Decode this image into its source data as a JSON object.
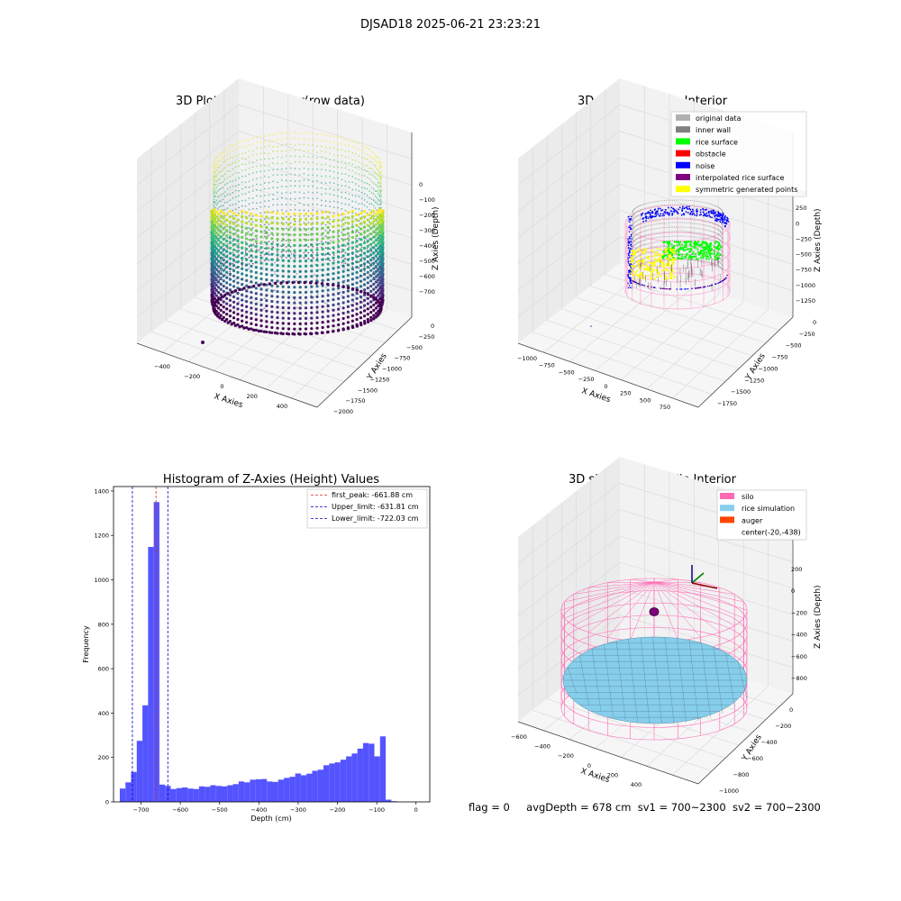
{
  "figure": {
    "suptitle": "DJSAD18 2025-06-21 23:23:21"
  },
  "status": {
    "flag": "flag = 0",
    "avg_depth": "avgDepth = 678 cm",
    "sv1": "sv1 = 700~2300",
    "sv2": "sv2 = 700~2300"
  },
  "colors": {
    "histogram_bar": "#4b4bff",
    "first_peak_line": "#d62728",
    "limit_lines": "#0000cc",
    "silo": "#ff69b4",
    "rice_simulation": "#87ceeb",
    "auger": "#ff4500",
    "original_data": "#b0b0b0",
    "inner_wall": "#808080",
    "rice_surface": "#00ff00",
    "obstacle": "#ff0000",
    "noise": "#0000ff",
    "interpolated_rice_surface": "#800080",
    "symmetric_generated_points": "#ffff00"
  },
  "chart_data": [
    {
      "type": "scatter",
      "projection": "3d",
      "title": "3D Plot of Silo Interior(row data)",
      "xlabel": "X Axies",
      "ylabel": "Y Axies",
      "zlabel": "Z Axies (Depth)",
      "xticks": [
        "−400",
        "−200",
        "0",
        "200",
        "400"
      ],
      "yticks": [
        "0",
        "−250",
        "−500",
        "−750",
        "−1000",
        "−1250",
        "−1500",
        "−1750",
        "−2000"
      ],
      "zticks": [
        "0",
        "−100",
        "−200",
        "−300",
        "−400",
        "−500",
        "−600",
        "−700"
      ],
      "colormap": "viridis"
    },
    {
      "type": "scatter",
      "projection": "3d",
      "title": "3D classify of Silo Interior",
      "zlabel": "Z Axies (Depth)",
      "xlabel": "X Axies",
      "ylabel": "Y Axies",
      "xticks": [
        "−1000",
        "−750",
        "−500",
        "−250",
        "0",
        "250",
        "500",
        "750"
      ],
      "yticks": [
        "0",
        "−250",
        "−500",
        "−750",
        "−1000",
        "−1250",
        "−1500",
        "−1750"
      ],
      "zticks": [
        "500",
        "250",
        "0",
        "−250",
        "−500",
        "−750",
        "−1000",
        "−1250"
      ],
      "legend": [
        "original data",
        "inner wall",
        "rice surface",
        "obstacle",
        "noise",
        "interpolated rice surface",
        "symmetric generated points"
      ],
      "legend_loc": "upper right"
    },
    {
      "type": "bar",
      "title": "Histogram of Z-Axies (Height) Values",
      "xlabel": "Depth (cm)",
      "ylabel": "Frequency",
      "xlim": [
        -770,
        35
      ],
      "ylim": [
        0,
        1420
      ],
      "xticks": [
        -700,
        -600,
        -500,
        -400,
        -300,
        -200,
        -100,
        0
      ],
      "xtick_labels": [
        "−700",
        "−600",
        "−500",
        "−400",
        "−300",
        "−200",
        "−100",
        "0"
      ],
      "yticks": [
        0,
        200,
        400,
        600,
        800,
        1000,
        1200,
        1400
      ],
      "bin_width": 14.4,
      "bin_start": -754,
      "values": [
        60,
        88,
        135,
        275,
        435,
        1148,
        1350,
        78,
        72,
        58,
        62,
        65,
        60,
        58,
        70,
        68,
        75,
        72,
        70,
        75,
        80,
        92,
        88,
        100,
        102,
        103,
        92,
        90,
        100,
        108,
        113,
        128,
        120,
        127,
        140,
        145,
        165,
        173,
        178,
        190,
        205,
        218,
        240,
        265,
        262,
        205,
        295,
        10,
        3
      ],
      "vlines": [
        {
          "x": -661.88,
          "label": "first_peak: -661.88 cm",
          "style": "first_peak"
        },
        {
          "x": -631.81,
          "label": "Upper_limit: -631.81 cm",
          "style": "limit"
        },
        {
          "x": -722.03,
          "label": "Lower_limit: -722.03 cm",
          "style": "limit"
        }
      ],
      "legend_loc": "upper right"
    },
    {
      "type": "surface",
      "projection": "3d",
      "title": "3D simulation of Silo Interior",
      "xlabel": "X Axies",
      "ylabel": "Y Axies",
      "zlabel": "Z Axies (Depth)",
      "xticks": [
        "−600",
        "−400",
        "−200",
        "0",
        "200",
        "400"
      ],
      "yticks": [
        "0",
        "−200",
        "−400",
        "−600",
        "−800",
        "−1000"
      ],
      "zticks": [
        "200",
        "0",
        "−200",
        "−400",
        "−600",
        "−800"
      ],
      "legend": [
        "silo",
        "rice simulation",
        "auger",
        "center(-20,-438)"
      ],
      "legend_loc": "upper right"
    }
  ]
}
